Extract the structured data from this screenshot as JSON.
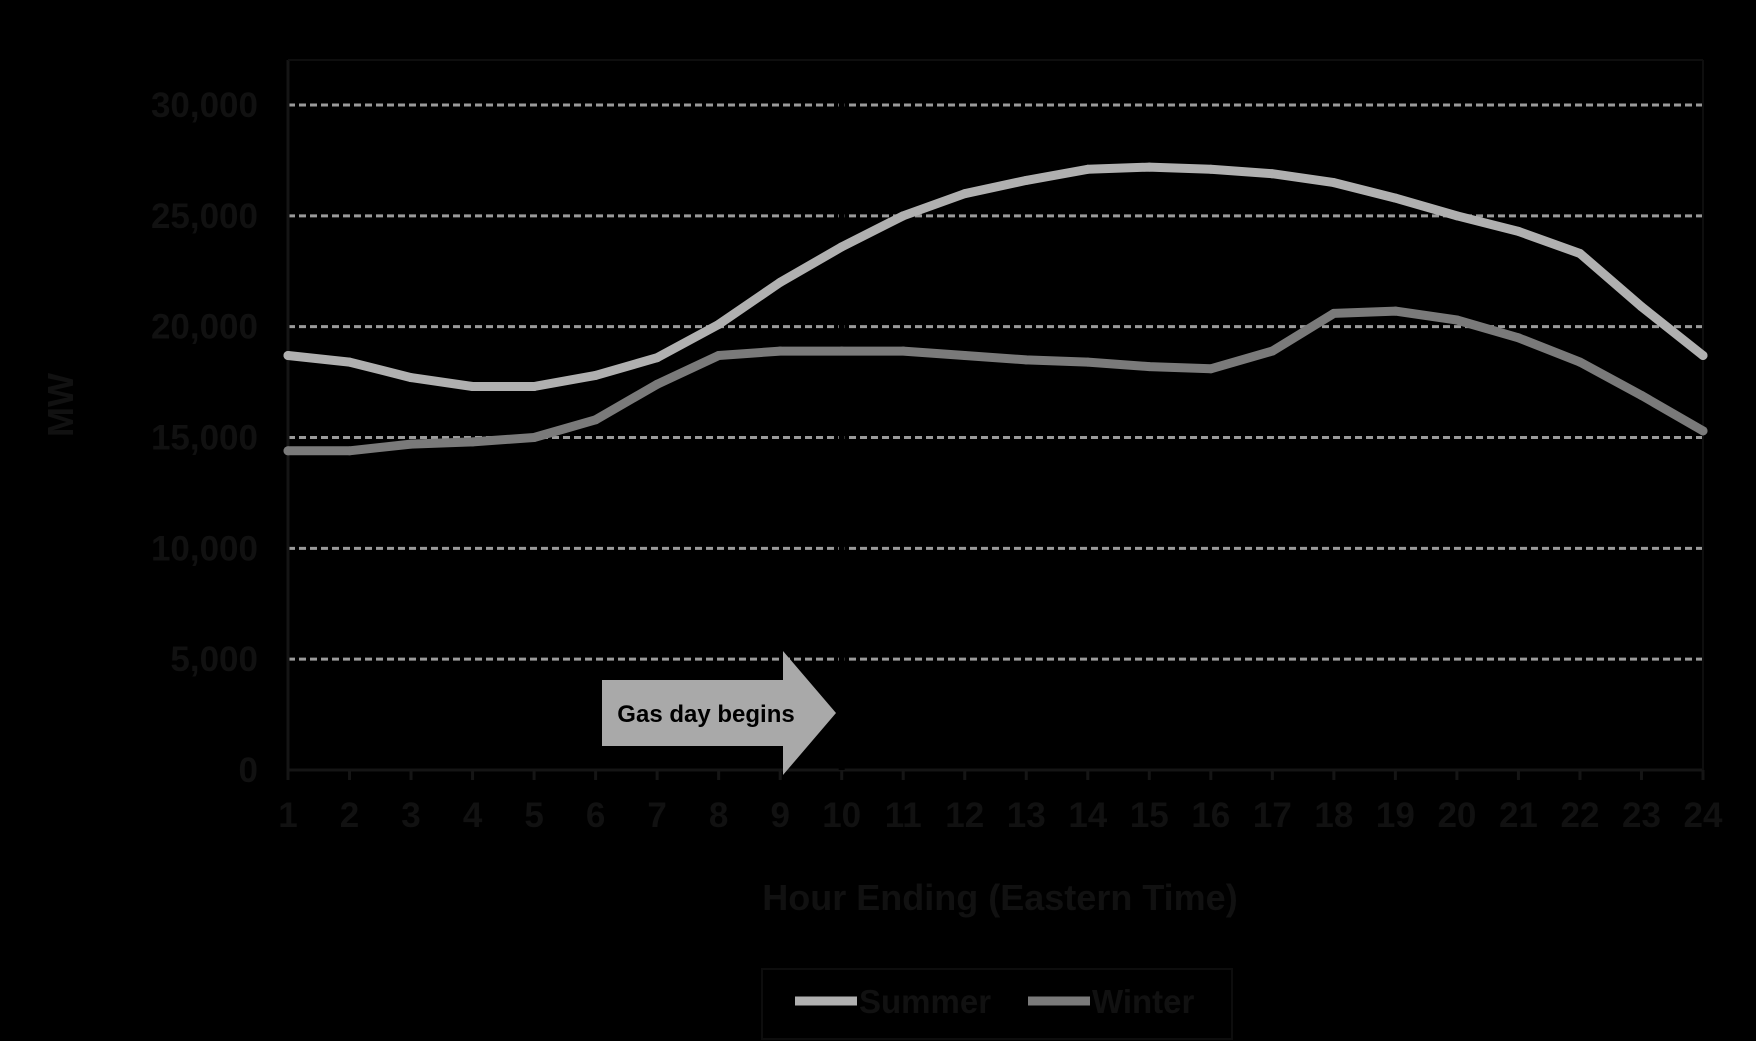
{
  "chart_data": {
    "type": "line",
    "title": "",
    "xlabel": "Hour Ending (Eastern Time)",
    "ylabel": "MW",
    "categories": [
      "1",
      "2",
      "3",
      "4",
      "5",
      "6",
      "7",
      "8",
      "9",
      "10",
      "11",
      "12",
      "13",
      "14",
      "15",
      "16",
      "17",
      "18",
      "19",
      "20",
      "21",
      "22",
      "23",
      "24"
    ],
    "ylim": [
      0,
      30000
    ],
    "yticks": [
      0,
      5000,
      10000,
      15000,
      20000,
      25000,
      30000
    ],
    "ytick_labels": [
      "0",
      "5,000",
      "10,000",
      "15,000",
      "20,000",
      "25,000",
      "30,000"
    ],
    "grid": true,
    "legend_position": "bottom",
    "series": [
      {
        "name": "Summer",
        "color": "#b0b0b0",
        "values": [
          18700,
          18400,
          17700,
          17300,
          17300,
          17800,
          18600,
          20100,
          22000,
          23600,
          25000,
          26000,
          26600,
          27100,
          27200,
          27100,
          26900,
          26500,
          25800,
          25000,
          24300,
          23300,
          20900,
          18700
        ]
      },
      {
        "name": "Winter",
        "color": "#7a7a7a",
        "values": [
          14400,
          14400,
          14700,
          14800,
          15000,
          15800,
          17400,
          18700,
          18900,
          18900,
          18900,
          18700,
          18500,
          18400,
          18200,
          18100,
          18900,
          20600,
          20700,
          20300,
          19500,
          18400,
          16900,
          15300
        ]
      }
    ],
    "annotations": [
      {
        "text": "Gas day begins",
        "at_category": "10"
      }
    ]
  }
}
